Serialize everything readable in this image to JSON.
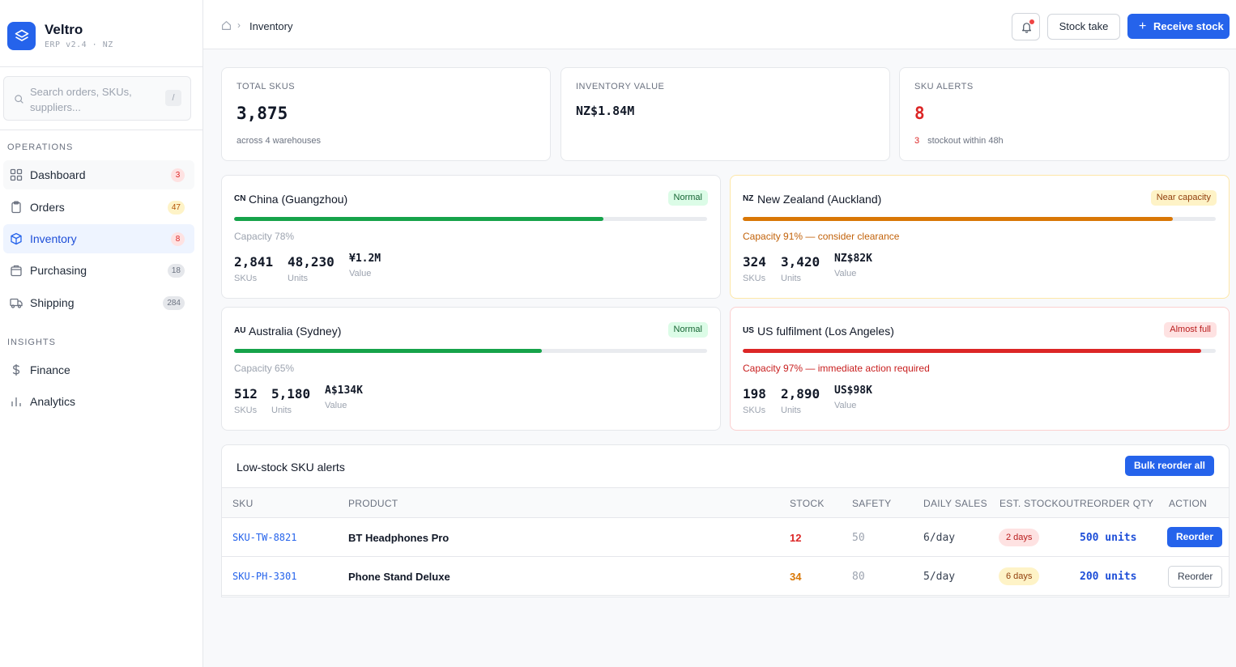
{
  "brand": {
    "name": "Veltro",
    "subtitle": "ERP v2.4 · NZ"
  },
  "search": {
    "placeholder": "Search orders, SKUs, suppliers...",
    "shortcut": "/"
  },
  "sidebar": {
    "sections": [
      {
        "title": "OPERATIONS"
      },
      {
        "title": "INSIGHTS"
      }
    ],
    "items": [
      {
        "label": "Dashboard",
        "badge": "3",
        "icon": "grid-icon"
      },
      {
        "label": "Orders",
        "badge": "47",
        "icon": "clipboard-icon"
      },
      {
        "label": "Inventory",
        "badge": "8",
        "icon": "box-icon",
        "active": true
      },
      {
        "label": "Purchasing",
        "badge": "18",
        "icon": "bag-icon"
      },
      {
        "label": "Shipping",
        "badge": "284",
        "icon": "truck-icon"
      },
      {
        "label": "Finance",
        "icon": "dollar-icon"
      },
      {
        "label": "Analytics",
        "icon": "bar-chart-icon"
      }
    ]
  },
  "header": {
    "breadcrumb": {
      "current": "Inventory"
    },
    "stock_take_label": "Stock take",
    "receive_stock_label": "Receive stock"
  },
  "stats": [
    {
      "label": "TOTAL SKUS",
      "value": "3,875",
      "sub": "across 4 warehouses"
    },
    {
      "label": "INVENTORY VALUE",
      "value": "NZ$1.84M"
    },
    {
      "label": "SKU ALERTS",
      "value": "8",
      "sub_count": "3",
      "sub": "stockout within 48h"
    }
  ],
  "warehouses": [
    {
      "code": "CN",
      "name": "China (Guangzhou)",
      "status": "Normal",
      "capacity_pct": 78,
      "capacity_text": "Capacity 78%",
      "skus": "2,841",
      "units": "48,230",
      "value": "¥1.2M",
      "skus_label": "SKUs",
      "units_label": "Units",
      "value_label": "Value",
      "bar_color": "#16a34a"
    },
    {
      "code": "NZ",
      "name": "New Zealand (Auckland)",
      "status": "Near capacity",
      "capacity_pct": 91,
      "capacity_text": "Capacity 91% — consider clearance",
      "skus": "324",
      "units": "3,420",
      "value": "NZ$82K",
      "skus_label": "SKUs",
      "units_label": "Units",
      "value_label": "Value",
      "bar_color": "#d97706"
    },
    {
      "code": "AU",
      "name": "Australia (Sydney)",
      "status": "Normal",
      "capacity_pct": 65,
      "capacity_text": "Capacity 65%",
      "skus": "512",
      "units": "5,180",
      "value": "A$134K",
      "skus_label": "SKUs",
      "units_label": "Units",
      "value_label": "Value",
      "bar_color": "#16a34a"
    },
    {
      "code": "US",
      "name": "US fulfilment (Los Angeles)",
      "status": "Almost full",
      "capacity_pct": 97,
      "capacity_text": "Capacity 97% — immediate action required",
      "skus": "198",
      "units": "2,890",
      "value": "US$98K",
      "skus_label": "SKUs",
      "units_label": "Units",
      "value_label": "Value",
      "bar_color": "#dc2626"
    }
  ],
  "alerts_table": {
    "title": "Low-stock SKU alerts",
    "bulk_label": "Bulk reorder all",
    "columns": [
      "SKU",
      "PRODUCT",
      "STOCK",
      "SAFETY",
      "DAILY SALES",
      "EST. STOCKOUT",
      "REORDER QTY",
      "ACTION"
    ],
    "rows": [
      {
        "sku": "SKU-TW-8821",
        "product": "BT Headphones Pro",
        "stock": "12",
        "safety": "50",
        "daily": "6/day",
        "stockout": "2 days",
        "qty": "500 units",
        "action": "Reorder"
      },
      {
        "sku": "SKU-PH-3301",
        "product": "Phone Stand Deluxe",
        "stock": "34",
        "safety": "80",
        "daily": "5/day",
        "stockout": "6 days",
        "qty": "200 units",
        "action": "Reorder"
      }
    ]
  },
  "colors": {
    "accent": "#2563eb",
    "green": "#16a34a",
    "amber": "#d97706",
    "red": "#dc2626"
  }
}
